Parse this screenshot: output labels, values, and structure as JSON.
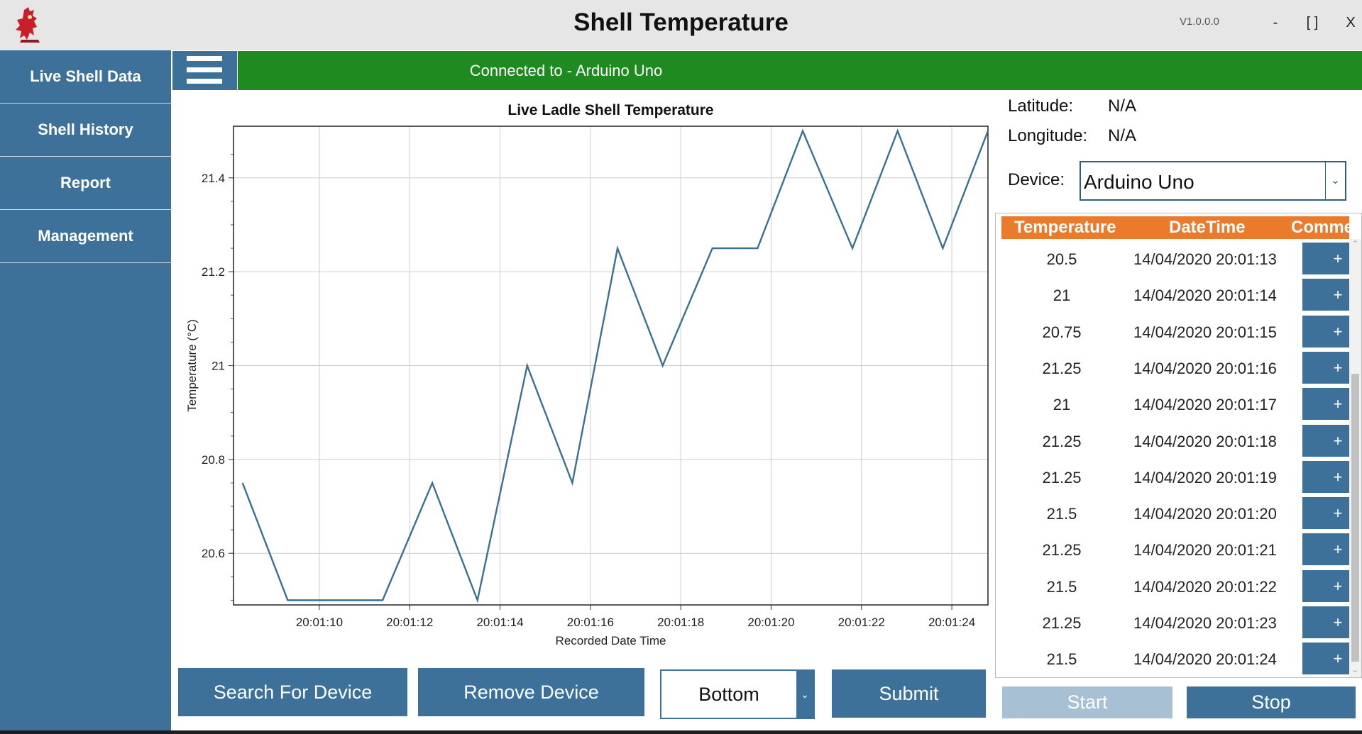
{
  "window": {
    "title": "Shell Temperature",
    "version": "V1.0.0.0",
    "minimize": "-",
    "maximize": "[ ]",
    "close": "X"
  },
  "sidebar": {
    "items": [
      {
        "label": "Live Shell Data"
      },
      {
        "label": "Shell History"
      },
      {
        "label": "Report"
      },
      {
        "label": "Management"
      }
    ]
  },
  "status": {
    "text": "Connected to - Arduino Uno",
    "color": "#1f8a1f"
  },
  "info": {
    "latitude_label": "Latitude:",
    "latitude_value": "N/A",
    "longitude_label": "Longitude:",
    "longitude_value": "N/A",
    "device_label": "Device:",
    "device_value": "Arduino Uno"
  },
  "grid": {
    "headers": [
      "Temperature",
      "DateTime",
      "Comme"
    ],
    "header_color": "#ea7a2c",
    "rows": [
      {
        "temp": "20.5",
        "datetime": "14/04/2020 20:01:13",
        "action": "+"
      },
      {
        "temp": "21",
        "datetime": "14/04/2020 20:01:14",
        "action": "+"
      },
      {
        "temp": "20.75",
        "datetime": "14/04/2020 20:01:15",
        "action": "+"
      },
      {
        "temp": "21.25",
        "datetime": "14/04/2020 20:01:16",
        "action": "+"
      },
      {
        "temp": "21",
        "datetime": "14/04/2020 20:01:17",
        "action": "+"
      },
      {
        "temp": "21.25",
        "datetime": "14/04/2020 20:01:18",
        "action": "+"
      },
      {
        "temp": "21.25",
        "datetime": "14/04/2020 20:01:19",
        "action": "+"
      },
      {
        "temp": "21.5",
        "datetime": "14/04/2020 20:01:20",
        "action": "+"
      },
      {
        "temp": "21.25",
        "datetime": "14/04/2020 20:01:21",
        "action": "+"
      },
      {
        "temp": "21.5",
        "datetime": "14/04/2020 20:01:22",
        "action": "+"
      },
      {
        "temp": "21.25",
        "datetime": "14/04/2020 20:01:23",
        "action": "+"
      },
      {
        "temp": "21.5",
        "datetime": "14/04/2020 20:01:24",
        "action": "+"
      }
    ]
  },
  "buttons": {
    "search": "Search For Device",
    "remove": "Remove Device",
    "position_value": "Bottom",
    "submit": "Submit",
    "start": "Start",
    "stop": "Stop",
    "accent": "#3d7199",
    "disabled": "#a7c0d4"
  },
  "chart_data": {
    "type": "line",
    "title": "Live Ladle Shell Temperature",
    "xlabel": "Recorded Date Time",
    "ylabel": "Temperature (°C)",
    "xlim": [
      "20:01:08.1",
      "20:01:24.8"
    ],
    "ylim": [
      20.49,
      21.51
    ],
    "x_ticks": [
      "20:01:10",
      "20:01:12",
      "20:01:14",
      "20:01:16",
      "20:01:18",
      "20:01:20",
      "20:01:22",
      "20:01:24"
    ],
    "y_ticks": [
      20.6,
      20.8,
      21,
      21.2,
      21.4
    ],
    "grid": true,
    "line_color": "#3a7090",
    "series": [
      {
        "x": [
          "20:01:08.3",
          "20:01:09.3",
          "20:01:10.3",
          "20:01:11.4",
          "20:01:12.5",
          "20:01:13.5",
          "20:01:14.6",
          "20:01:15.6",
          "20:01:16.6",
          "20:01:17.6",
          "20:01:18.7",
          "20:01:19.7",
          "20:01:20.7",
          "20:01:21.8",
          "20:01:22.8",
          "20:01:23.8",
          "20:01:24.8"
        ],
        "values": [
          20.75,
          20.5,
          20.5,
          20.5,
          20.75,
          20.5,
          21,
          20.75,
          21.25,
          21,
          21.25,
          21.25,
          21.5,
          21.25,
          21.5,
          21.25,
          21.5
        ]
      }
    ]
  }
}
